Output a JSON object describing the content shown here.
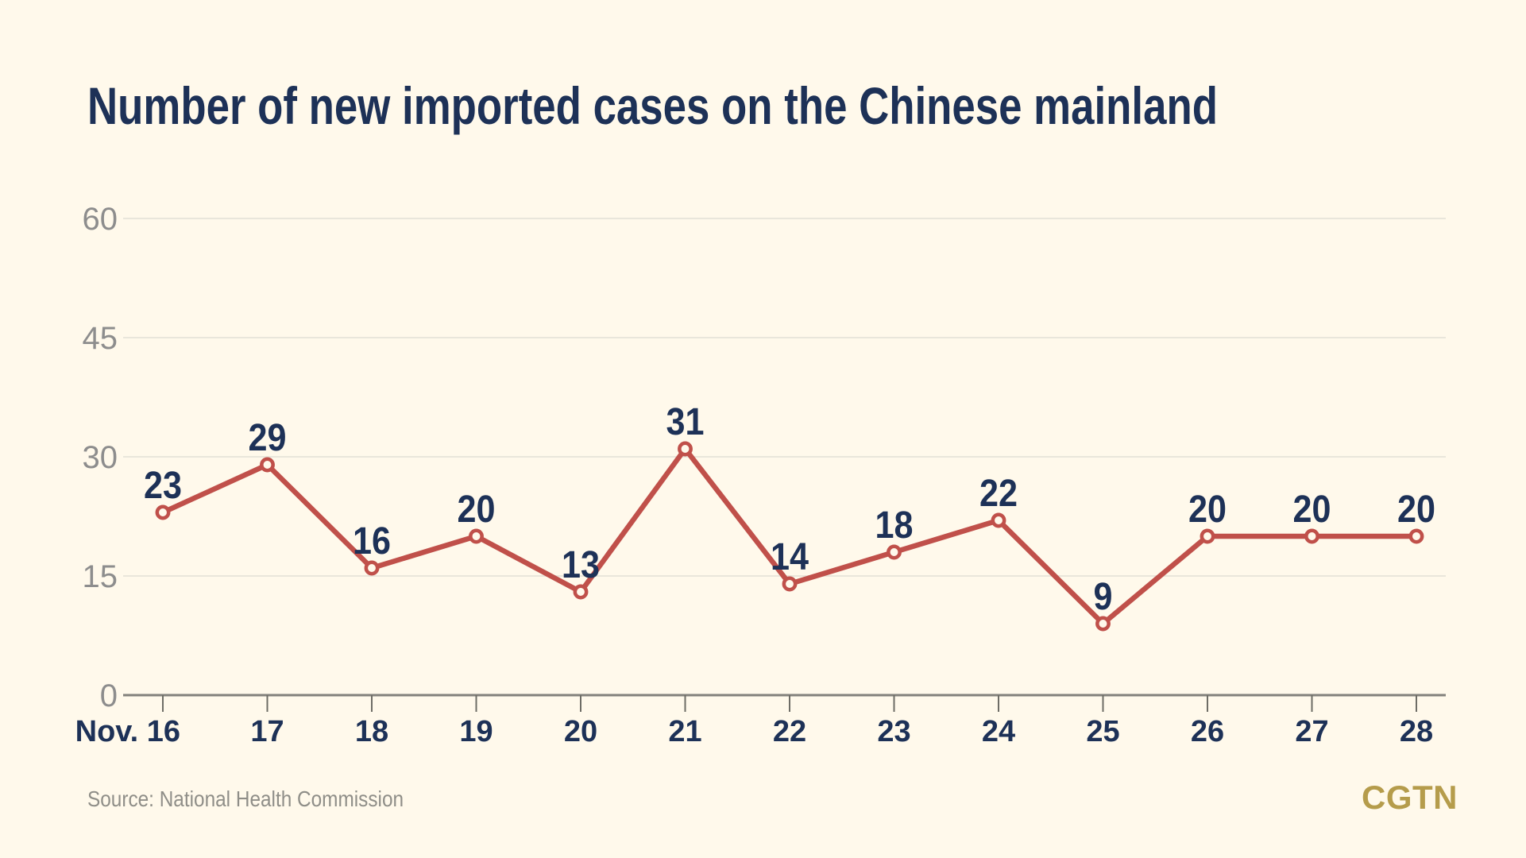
{
  "page": {
    "title": "Number of new imported cases on the Chinese mainland",
    "source": "Source: National Health Commission",
    "logo": "CGTN"
  },
  "colors": {
    "background": "#FFF9EB",
    "navy": "#1D3157",
    "red": "#C0504A",
    "grid": "#E9E6DB",
    "axis_gray": "#82817B",
    "tick_gray": "#6E6D66",
    "y_label_gray": "#8D8D8D",
    "source_gray": "#8F8E88",
    "gold": "#B59C4B"
  },
  "chart_data": {
    "type": "line",
    "title": "Number of new imported cases on the Chinese mainland",
    "x": [
      "Nov. 16",
      "17",
      "18",
      "19",
      "20",
      "21",
      "22",
      "23",
      "24",
      "25",
      "26",
      "27",
      "28"
    ],
    "values": [
      23,
      29,
      16,
      20,
      13,
      31,
      14,
      18,
      22,
      9,
      20,
      20,
      20
    ],
    "xlabel": "",
    "ylabel": "",
    "ylim": [
      0,
      60
    ],
    "yticks": [
      0,
      15,
      30,
      45,
      60
    ],
    "grid": "horizontal",
    "legend": "none",
    "series_color": "#C0504A",
    "marker": "open-circle",
    "data_labels": true,
    "source": "National Health Commission"
  }
}
